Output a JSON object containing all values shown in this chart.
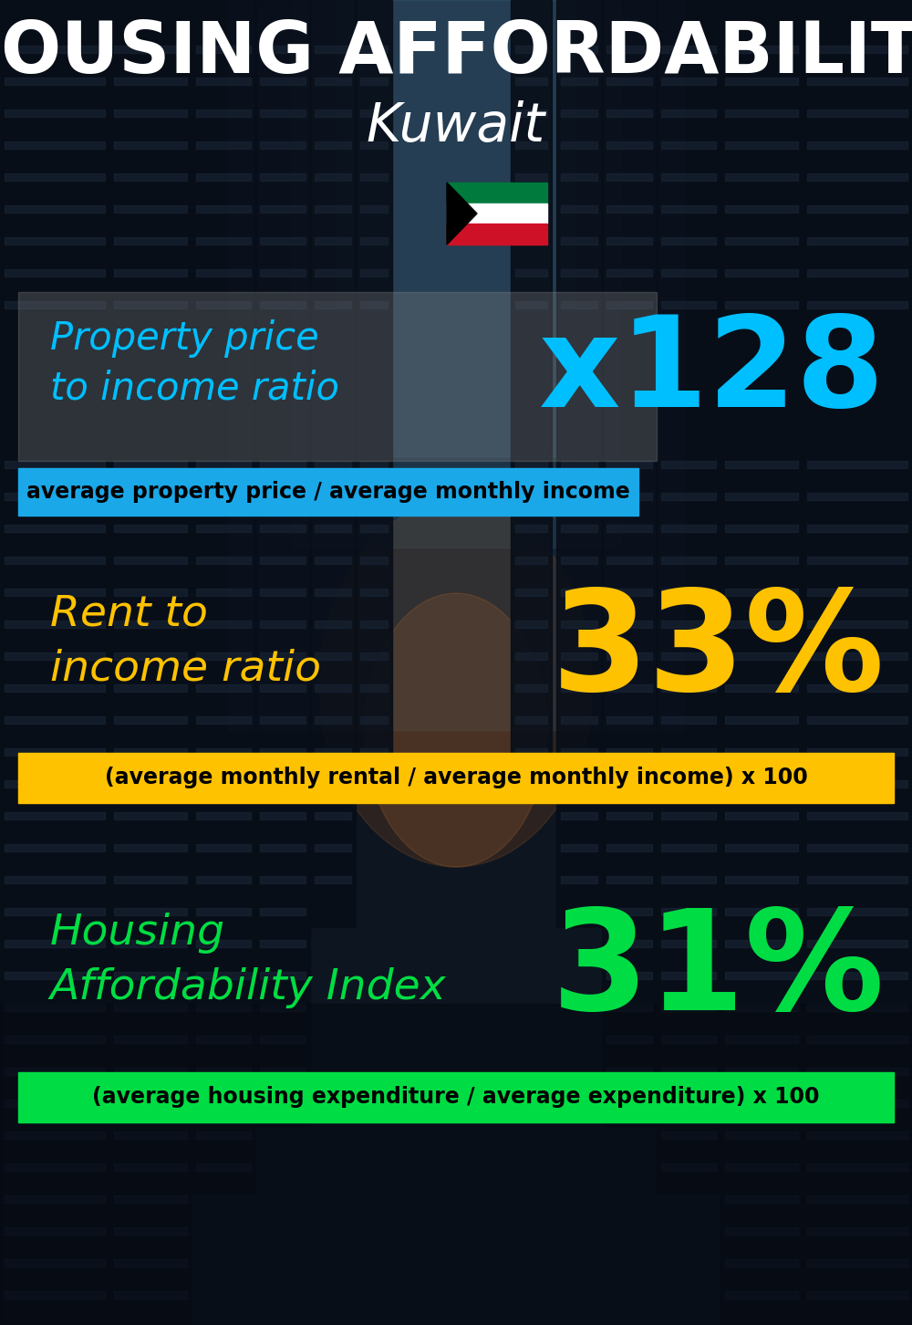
{
  "title_line1": "HOUSING AFFORDABILITY",
  "title_line2": "Kuwait",
  "title_color": "#ffffff",
  "bg_color": "#0d1520",
  "section1_label_line1": "Property price",
  "section1_label_line2": "to income ratio",
  "section1_label_color": "#00bfff",
  "section1_value": "x128",
  "section1_value_color": "#00bfff",
  "section1_bar_text": "average property price / average monthly income",
  "section1_bar_color": "#1aa8e8",
  "section1_bar_text_color": "#000000",
  "section1_panel_color": "#888888",
  "section1_panel_alpha": 0.3,
  "section2_label_line1": "Rent to",
  "section2_label_line2": "income ratio",
  "section2_label_color": "#ffc200",
  "section2_value": "33%",
  "section2_value_color": "#ffc200",
  "section2_bar_text": "(average monthly rental / average monthly income) x 100",
  "section2_bar_color": "#ffc200",
  "section2_bar_text_color": "#000000",
  "section3_label_line1": "Housing",
  "section3_label_line2": "Affordability Index",
  "section3_label_color": "#00dd44",
  "section3_value": "31%",
  "section3_value_color": "#00dd44",
  "section3_bar_text": "(average housing expenditure / average expenditure) x 100",
  "section3_bar_color": "#00dd44",
  "section3_bar_text_color": "#000000",
  "figsize": [
    10.0,
    14.52
  ],
  "dpi": 100
}
